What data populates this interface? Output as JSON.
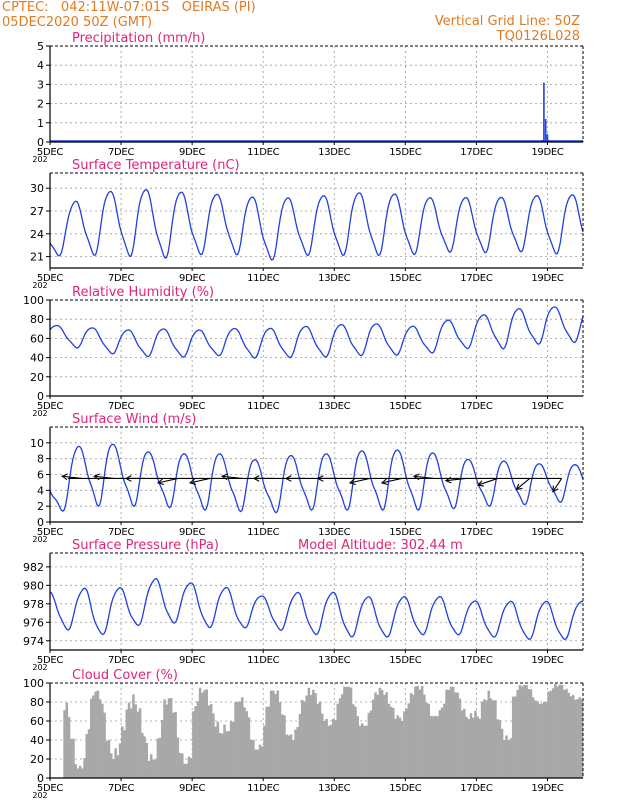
{
  "header": {
    "line1": "CPTEC:   042:11W-07:01S   OEIRAS (PI)",
    "line2": "05DEC2020 50Z (GMT)",
    "right1": "Vertical Grid Line: 50Z",
    "right2": "TQ0126L028"
  },
  "colors": {
    "header": "#e07a22",
    "panel_title": "#e0247a",
    "series_line": "#2040e0",
    "wind_arrow": "#000000",
    "cloud_bar": "#a8a8a8",
    "grid": "#9a9a9a"
  },
  "x_axis": {
    "start_day": 5,
    "end_day": 20,
    "tick_days": [
      5,
      7,
      9,
      11,
      13,
      15,
      17,
      19
    ],
    "tick_labels": [
      "5DEC",
      "7DEC",
      "9DEC",
      "11DEC",
      "13DEC",
      "15DEC",
      "17DEC",
      "19DEC"
    ],
    "stub_label": "202"
  },
  "chart_data": [
    {
      "id": "precip",
      "type": "bar",
      "title": "Precipitation (mm/h)",
      "ylim": [
        0,
        5
      ],
      "yticks": [
        0,
        1,
        2,
        3,
        4,
        5
      ],
      "grid": true,
      "x_days": [
        18.85,
        18.9,
        18.95,
        19.0,
        19.05
      ],
      "values": [
        0.1,
        3.1,
        1.2,
        0.4,
        0.1
      ]
    },
    {
      "id": "temp",
      "type": "line",
      "title": "Surface Temperature (nC)",
      "ylim": [
        19.5,
        32
      ],
      "yticks": [
        21,
        24,
        27,
        30
      ],
      "grid": true,
      "cycle": {
        "phase_days": 0.45,
        "sharp": 0.5
      },
      "daily_max": [
        26.0,
        29.8,
        30.2,
        30.4,
        29.8,
        29.6,
        29.2,
        29.2,
        29.6,
        30.0,
        29.6,
        29.0,
        29.3,
        29.2,
        29.6
      ],
      "daily_min": [
        21.0,
        21.0,
        21.0,
        20.5,
        21.0,
        21.4,
        20.2,
        21.0,
        21.0,
        21.0,
        21.0,
        21.5,
        21.3,
        21.6,
        21.2
      ]
    },
    {
      "id": "rh",
      "type": "line",
      "title": "Relative Humidity (%)",
      "ylim": [
        0,
        100
      ],
      "yticks": [
        0,
        20,
        40,
        60,
        80,
        100
      ],
      "grid": true,
      "cycle": {
        "phase_days": 0.95,
        "sharp": 0.5
      },
      "daily_max": [
        75,
        73,
        70,
        72,
        70,
        72,
        72,
        74,
        76,
        78,
        73,
        80,
        85,
        93,
        95
      ],
      "daily_min": [
        55,
        48,
        42,
        40,
        40,
        42,
        38,
        40,
        40,
        42,
        42,
        45,
        50,
        48,
        55
      ]
    },
    {
      "id": "wind",
      "type": "line",
      "title": "Surface Wind (m/s)",
      "ylim": [
        0,
        12
      ],
      "yticks": [
        0,
        2,
        4,
        6,
        8,
        10
      ],
      "grid": true,
      "cycle": {
        "phase_days": 0.55,
        "sharp": 0.8
      },
      "daily_max": [
        6,
        11,
        10,
        9,
        9,
        9,
        8,
        9,
        9,
        9.5,
        9.5,
        9,
        8,
        8,
        7.5
      ],
      "daily_min": [
        1,
        2,
        2,
        2,
        1.5,
        1.5,
        1,
        1.5,
        1.5,
        1.5,
        1.5,
        1.5,
        2,
        2,
        2.5
      ],
      "arrows": {
        "baseline": 5.5,
        "x_days": [
          5.9,
          6.8,
          7.7,
          8.6,
          9.5,
          10.4,
          11.3,
          12.2,
          13.1,
          14.0,
          14.9,
          15.8,
          16.7,
          17.6,
          18.5,
          19.4
        ],
        "u": [
          -0.9,
          -0.9,
          -0.9,
          -0.9,
          -0.9,
          -0.9,
          -0.9,
          -0.9,
          -0.9,
          -0.9,
          -0.9,
          -0.9,
          -0.9,
          -0.9,
          -0.6,
          -0.4
        ],
        "v": [
          0.1,
          0.1,
          0.0,
          -0.2,
          -0.2,
          0.1,
          0.0,
          0.0,
          0.0,
          -0.2,
          -0.2,
          0.1,
          -0.1,
          -0.3,
          -0.5,
          -0.6
        ]
      }
    },
    {
      "id": "pres",
      "type": "line",
      "title": "Surface Pressure (hPa)",
      "extra_label": "Model Altitude: 302.44 m",
      "ylim": [
        973,
        983.5
      ],
      "yticks": [
        974,
        976,
        978,
        980,
        982
      ],
      "grid": true,
      "cycle": {
        "phase_days": 0.7,
        "sharp": 0.2
      },
      "daily_max": [
        979.5,
        980.0,
        980.0,
        981.0,
        980.5,
        980.0,
        979.0,
        979.5,
        979.5,
        979.0,
        979.0,
        979.0,
        978.5,
        978.5,
        978.5
      ],
      "daily_min": [
        976.0,
        974.0,
        975.0,
        976.0,
        975.5,
        975.0,
        975.5,
        974.5,
        974.5,
        974.0,
        974.5,
        974.5,
        974.5,
        974.0,
        974.0
      ]
    },
    {
      "id": "cloud",
      "type": "bar",
      "title": "Cloud Cover (%)",
      "ylim": [
        0,
        100
      ],
      "yticks": [
        0,
        20,
        40,
        60,
        80,
        100
      ],
      "grid": true,
      "bar_step_days": 0.0625,
      "daily_peak": [
        82,
        92,
        88,
        84,
        95,
        85,
        92,
        95,
        96,
        95,
        97,
        96,
        92,
        98,
        99
      ],
      "daily_base": [
        10,
        20,
        18,
        15,
        45,
        30,
        40,
        55,
        55,
        60,
        65,
        62,
        40,
        78,
        82
      ]
    }
  ]
}
